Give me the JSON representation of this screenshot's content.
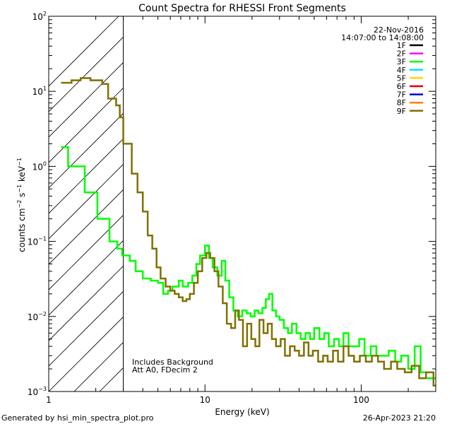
{
  "chart_data": {
    "type": "line",
    "title": "Count Spectra for RHESSI Front Segments",
    "xlabel": "Energy (keV)",
    "ylabel": "counts cm-2 s-1 keV-1",
    "ylabel_parts": {
      "base": "counts cm",
      "exp1": "−2",
      "mid": " s",
      "exp2": "−1",
      "tail": " keV",
      "exp3": "−1"
    },
    "xscale": "log",
    "yscale": "log",
    "xlim": [
      1,
      300
    ],
    "ylim": [
      0.001,
      100
    ],
    "x_ticks": [
      {
        "value": 1,
        "label": "1"
      },
      {
        "value": 10,
        "label": "10"
      },
      {
        "value": 100,
        "label": "100"
      }
    ],
    "y_ticks": [
      {
        "value": 0.001,
        "base": "10",
        "exp": "−3"
      },
      {
        "value": 0.01,
        "base": "10",
        "exp": "−2"
      },
      {
        "value": 0.1,
        "base": "10",
        "exp": "−1"
      },
      {
        "value": 1,
        "base": "10",
        "exp": "0"
      },
      {
        "value": 10,
        "base": "10",
        "exp": "1"
      },
      {
        "value": 100,
        "base": "10",
        "exp": "2"
      }
    ],
    "hatched_region": {
      "from": 1,
      "to": 3
    },
    "date": "22-Nov-2016",
    "time_range": "14:07:00 to 14:08:00",
    "legend": [
      {
        "name": "1F",
        "color": "#000000"
      },
      {
        "name": "2F",
        "color": "#ff00ff"
      },
      {
        "name": "3F",
        "color": "#00ff00"
      },
      {
        "name": "4F",
        "color": "#00e5ff"
      },
      {
        "name": "5F",
        "color": "#ffd700"
      },
      {
        "name": "6F",
        "color": "#e00000"
      },
      {
        "name": "7F",
        "color": "#0000d0"
      },
      {
        "name": "8F",
        "color": "#ff8000"
      },
      {
        "name": "9F",
        "color": "#807000"
      }
    ],
    "annotations": [
      "Includes Background",
      "Att A0, FDecim 2"
    ],
    "series": [
      {
        "name": "3F",
        "color": "#00ff00",
        "points": [
          [
            1.2,
            1.8
          ],
          [
            1.33,
            1.0
          ],
          [
            1.55,
            1.0
          ],
          [
            1.7,
            0.45
          ],
          [
            1.9,
            0.45
          ],
          [
            2.05,
            0.2
          ],
          [
            2.3,
            0.2
          ],
          [
            2.45,
            0.1
          ],
          [
            2.75,
            0.08
          ],
          [
            2.95,
            0.065
          ],
          [
            3.3,
            0.055
          ],
          [
            3.6,
            0.04
          ],
          [
            4.0,
            0.032
          ],
          [
            4.5,
            0.03
          ],
          [
            5.0,
            0.028
          ],
          [
            5.4,
            0.02
          ],
          [
            5.8,
            0.022
          ],
          [
            6.2,
            0.025
          ],
          [
            6.8,
            0.03
          ],
          [
            7.2,
            0.025
          ],
          [
            7.8,
            0.028
          ],
          [
            8.3,
            0.035
          ],
          [
            8.8,
            0.05
          ],
          [
            9.3,
            0.065
          ],
          [
            10.0,
            0.088
          ],
          [
            10.6,
            0.06
          ],
          [
            11.2,
            0.045
          ],
          [
            12.0,
            0.035
          ],
          [
            12.8,
            0.055
          ],
          [
            13.5,
            0.03
          ],
          [
            14.3,
            0.018
          ],
          [
            15.2,
            0.012
          ],
          [
            16.2,
            0.01
          ],
          [
            17.3,
            0.012
          ],
          [
            18.5,
            0.011
          ],
          [
            19.6,
            0.01
          ],
          [
            20.8,
            0.012
          ],
          [
            22.0,
            0.011
          ],
          [
            23.3,
            0.013
          ],
          [
            24.5,
            0.017
          ],
          [
            25.7,
            0.02
          ],
          [
            27.0,
            0.012
          ],
          [
            28.5,
            0.01
          ],
          [
            30.0,
            0.009
          ],
          [
            32.0,
            0.007
          ],
          [
            34.0,
            0.006
          ],
          [
            36.0,
            0.008
          ],
          [
            38.5,
            0.006
          ],
          [
            41.0,
            0.005
          ],
          [
            44.0,
            0.006
          ],
          [
            47.0,
            0.005
          ],
          [
            50.0,
            0.007
          ],
          [
            54.0,
            0.005
          ],
          [
            58.0,
            0.006
          ],
          [
            62.0,
            0.004
          ],
          [
            67.0,
            0.005
          ],
          [
            72.0,
            0.004
          ],
          [
            77.0,
            0.006
          ],
          [
            83.0,
            0.004
          ],
          [
            90.0,
            0.004
          ],
          [
            97.0,
            0.005
          ],
          [
            105.0,
            0.003
          ],
          [
            115.0,
            0.004
          ],
          [
            125.0,
            0.003
          ],
          [
            135.0,
            0.003
          ],
          [
            150.0,
            0.0035
          ],
          [
            165.0,
            0.0025
          ],
          [
            180.0,
            0.003
          ],
          [
            200.0,
            0.002
          ],
          [
            220.0,
            0.004
          ],
          [
            240.0,
            0.0018
          ],
          [
            260.0,
            0.0015
          ],
          [
            290.0,
            0.0015
          ]
        ]
      },
      {
        "name": "9F",
        "color": "#807000",
        "points": [
          [
            1.2,
            13.0
          ],
          [
            1.4,
            14.0
          ],
          [
            1.6,
            15.0
          ],
          [
            1.85,
            14.0
          ],
          [
            2.2,
            12.5
          ],
          [
            2.4,
            8.0
          ],
          [
            2.7,
            6.5
          ],
          [
            2.85,
            4.5
          ],
          [
            3.0,
            2.0
          ],
          [
            3.4,
            0.8
          ],
          [
            3.7,
            0.45
          ],
          [
            4.0,
            0.25
          ],
          [
            4.3,
            0.12
          ],
          [
            4.6,
            0.08
          ],
          [
            4.9,
            0.045
          ],
          [
            5.2,
            0.032
          ],
          [
            5.6,
            0.025
          ],
          [
            6.0,
            0.022
          ],
          [
            6.4,
            0.02
          ],
          [
            6.8,
            0.018
          ],
          [
            7.2,
            0.016
          ],
          [
            7.6,
            0.017
          ],
          [
            8.0,
            0.02
          ],
          [
            8.5,
            0.028
          ],
          [
            9.0,
            0.04
          ],
          [
            9.6,
            0.06
          ],
          [
            10.2,
            0.07
          ],
          [
            10.8,
            0.06
          ],
          [
            11.5,
            0.04
          ],
          [
            12.2,
            0.025
          ],
          [
            13.0,
            0.015
          ],
          [
            13.8,
            0.008
          ],
          [
            14.7,
            0.007
          ],
          [
            15.6,
            0.012
          ],
          [
            16.5,
            0.009
          ],
          [
            17.5,
            0.004
          ],
          [
            18.6,
            0.008
          ],
          [
            19.8,
            0.005
          ],
          [
            21.0,
            0.004
          ],
          [
            22.3,
            0.009
          ],
          [
            23.7,
            0.006
          ],
          [
            25.2,
            0.008
          ],
          [
            26.8,
            0.005
          ],
          [
            28.5,
            0.004
          ],
          [
            30.5,
            0.005
          ],
          [
            32.5,
            0.003
          ],
          [
            35.0,
            0.004
          ],
          [
            37.5,
            0.0035
          ],
          [
            40.0,
            0.003
          ],
          [
            43.0,
            0.0045
          ],
          [
            46.0,
            0.003
          ],
          [
            49.0,
            0.0035
          ],
          [
            53.0,
            0.0025
          ],
          [
            57.0,
            0.003
          ],
          [
            61.0,
            0.0025
          ],
          [
            66.0,
            0.0035
          ],
          [
            71.0,
            0.0025
          ],
          [
            77.0,
            0.004
          ],
          [
            83.0,
            0.003
          ],
          [
            90.0,
            0.0025
          ],
          [
            98.0,
            0.003
          ],
          [
            107.0,
            0.0025
          ],
          [
            117.0,
            0.003
          ],
          [
            128.0,
            0.0025
          ],
          [
            140.0,
            0.002
          ],
          [
            155.0,
            0.0025
          ],
          [
            170.0,
            0.002
          ],
          [
            190.0,
            0.0018
          ],
          [
            210.0,
            0.0022
          ],
          [
            235.0,
            0.0015
          ],
          [
            260.0,
            0.0018
          ],
          [
            290.0,
            0.0012
          ]
        ]
      }
    ]
  },
  "footer": {
    "generated_by": "Generated by hsi_min_spectra_plot.pro",
    "timestamp": "26-Apr-2023 21:20"
  }
}
